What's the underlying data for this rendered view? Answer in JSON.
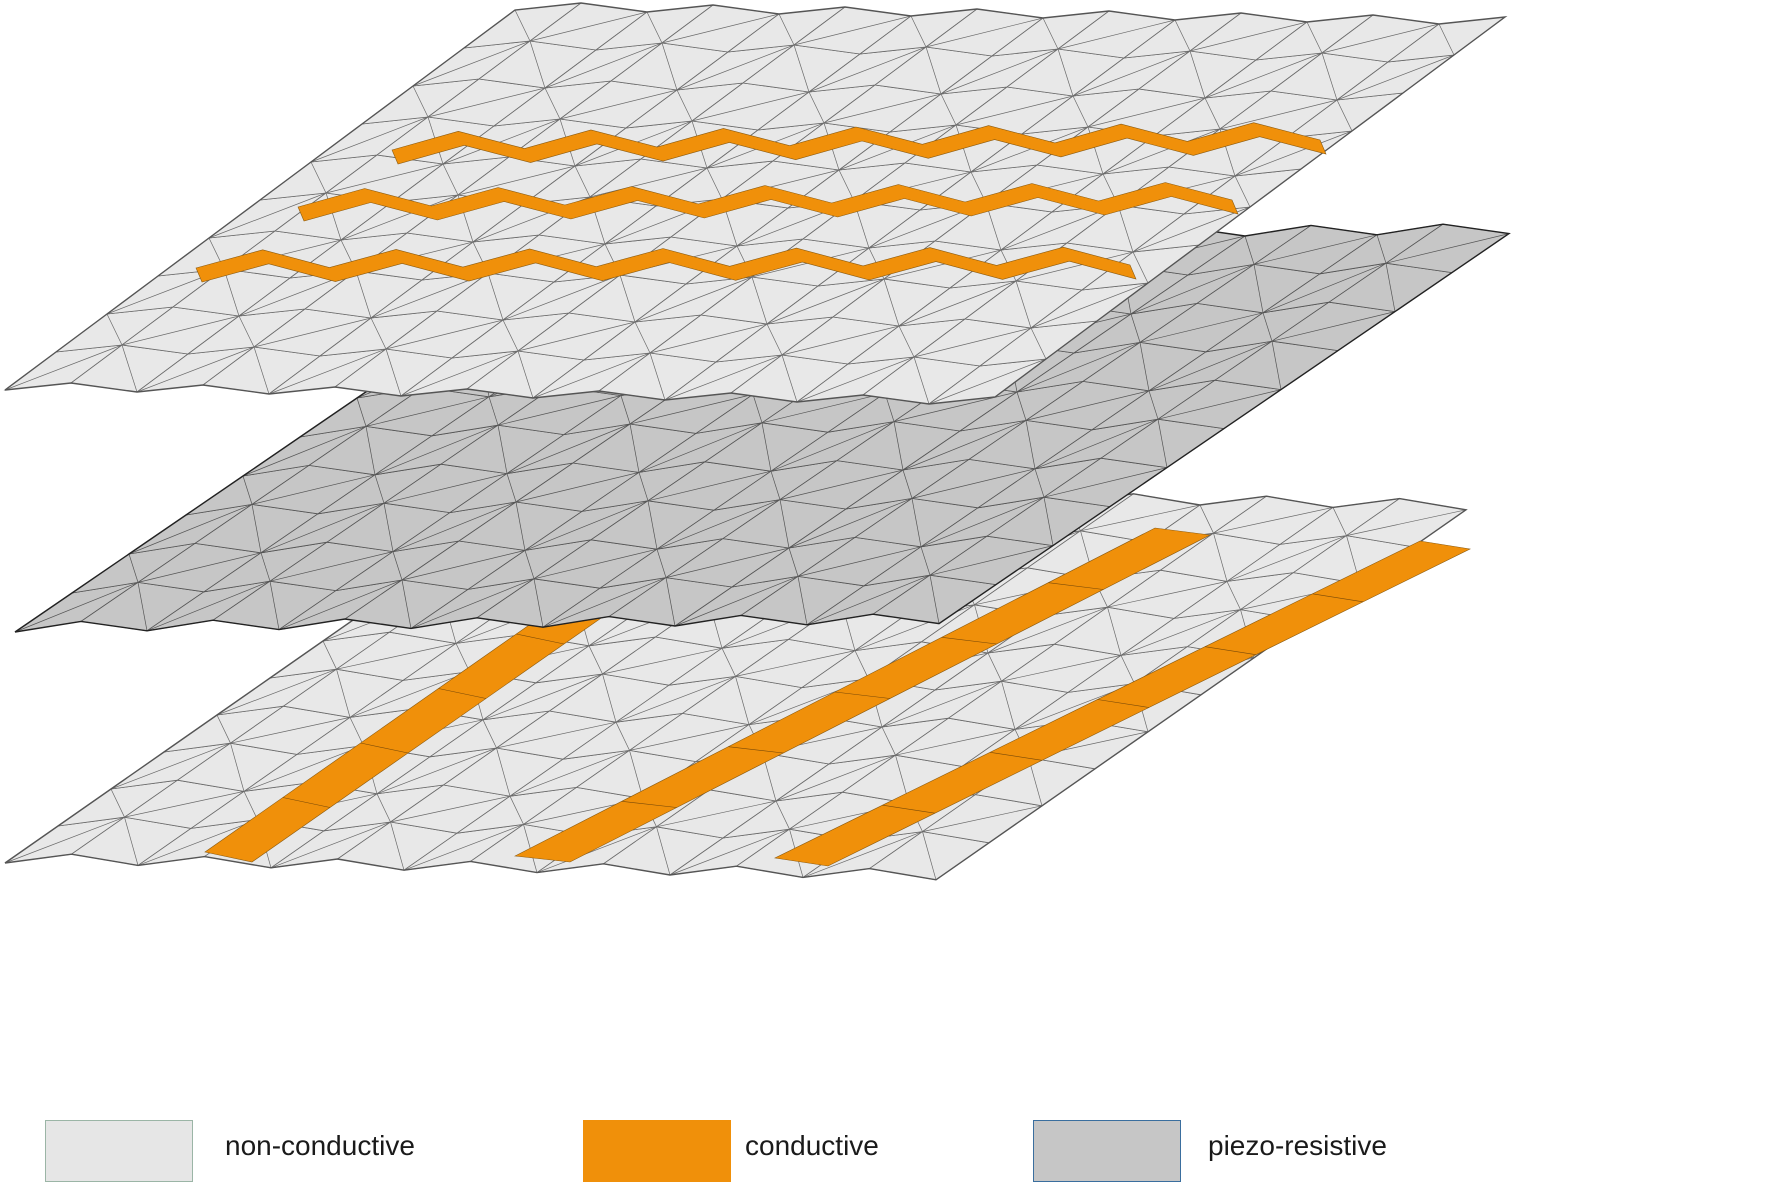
{
  "figure": {
    "layers": [
      {
        "name": "top-sheet",
        "material": "non-conductive",
        "trace_material": "conductive",
        "trace_pattern": "zigzag",
        "trace_count": 3
      },
      {
        "name": "middle-sheet",
        "material": "piezo-resistive"
      },
      {
        "name": "bottom-sheet",
        "material": "non-conductive",
        "trace_material": "conductive",
        "trace_pattern": "straight",
        "trace_count": 3
      }
    ]
  },
  "legend": {
    "items": [
      {
        "key": "non-conductive",
        "label": "non-conductive",
        "fill": "#e6e6e6",
        "border": "#9bb5a6"
      },
      {
        "key": "conductive",
        "label": "conductive",
        "fill": "#f0900a",
        "border": "#f0900a"
      },
      {
        "key": "piezo-resistive",
        "label": "piezo-resistive",
        "fill": "#c6c6c6",
        "border": "#3a6e9e"
      }
    ]
  },
  "colors": {
    "sheet_light": "#e8e8e8",
    "sheet_grey": "#c6c6c6",
    "conductive": "#f0900a",
    "edge": "#3c3c3c"
  }
}
